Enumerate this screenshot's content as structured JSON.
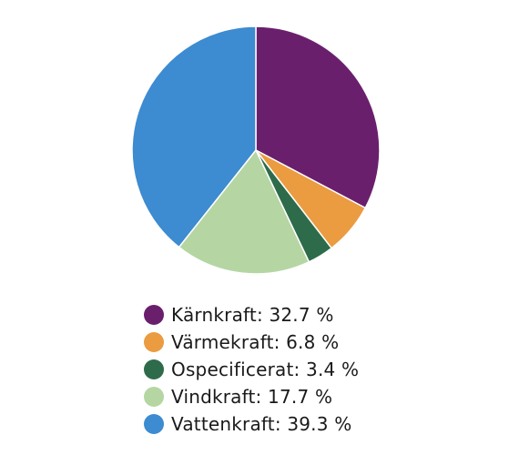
{
  "chart_data": {
    "type": "pie",
    "title": "",
    "legend_position": "bottom",
    "unit": "%",
    "slices": [
      {
        "label": "Kärnkraft",
        "value": 32.7,
        "display": "Kärnkraft: 32.7 %",
        "color": "#6a1f6d"
      },
      {
        "label": "Värmekraft",
        "value": 6.8,
        "display": "Värmekraft: 6.8 %",
        "color": "#eb9b40"
      },
      {
        "label": "Ospecificerat",
        "value": 3.4,
        "display": "Ospecificerat: 3.4 %",
        "color": "#2e6b4a"
      },
      {
        "label": "Vindkraft",
        "value": 17.7,
        "display": "Vindkraft: 17.7 %",
        "color": "#b5d6a3"
      },
      {
        "label": "Vattenkraft",
        "value": 39.3,
        "display": "Vattenkraft: 39.3 %",
        "color": "#3d8bd0"
      }
    ]
  }
}
